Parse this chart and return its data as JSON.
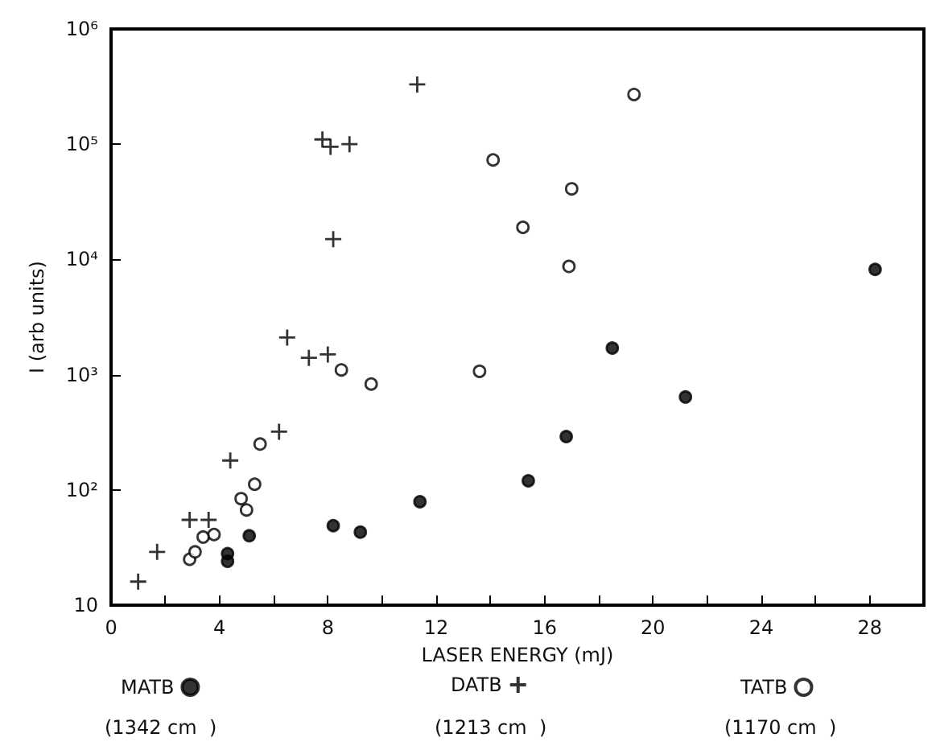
{
  "chart_data": {
    "type": "scatter",
    "xlabel": "LASER ENERGY (mJ)",
    "ylabel": "I (arb units)",
    "log": "y",
    "grid": false,
    "legend": "bottom",
    "xlim": [
      0,
      30
    ],
    "ylim": [
      10,
      1000000
    ],
    "xticks": [
      0,
      {
        "value": 2,
        "label": null
      },
      4,
      {
        "value": 6,
        "label": null
      },
      8,
      {
        "value": 10,
        "label": null
      },
      12,
      {
        "value": 14,
        "label": null
      },
      16,
      {
        "value": 18,
        "label": null
      },
      20,
      {
        "value": 22,
        "label": null
      },
      24,
      {
        "value": 26,
        "label": null
      },
      28
    ],
    "yticks": [
      {
        "value": 10,
        "label": "10"
      },
      {
        "value": 100,
        "label": "10²"
      },
      {
        "value": 1000,
        "label": "10³"
      },
      {
        "value": 10000,
        "label": "10⁴"
      },
      {
        "value": 100000,
        "label": "10⁵"
      },
      {
        "value": 1000000,
        "label": "10⁶"
      }
    ],
    "series": [
      {
        "name": "MATB",
        "color": "#000000",
        "marker": "circle",
        "x": [
          4.3,
          4.3,
          5.1,
          8.2,
          9.2,
          11.4,
          15.4,
          16.8,
          18.5,
          21.2,
          28.2
        ],
        "values": [
          28,
          24,
          40,
          49,
          43,
          79,
          120,
          290,
          1700,
          640,
          8200
        ]
      },
      {
        "name": "DATB",
        "color": "#000000",
        "marker": "cross",
        "x": [
          1.0,
          1.7,
          2.9,
          3.6,
          4.4,
          6.2,
          6.5,
          7.3,
          8.0,
          8.2,
          7.8,
          8.1,
          8.8,
          11.3
        ],
        "values": [
          16,
          29,
          55,
          55,
          180,
          320,
          2100,
          1400,
          1500,
          15000,
          110000,
          95000,
          100000,
          330000
        ]
      },
      {
        "name": "TATB",
        "color": "#ffffff",
        "marker": "circle",
        "x": [
          2.9,
          3.1,
          3.4,
          3.8,
          4.8,
          5.0,
          5.3,
          5.5,
          8.5,
          9.6,
          13.6,
          14.1,
          15.2,
          16.9,
          17.0,
          19.3
        ],
        "values": [
          25,
          29,
          39,
          41,
          84,
          67,
          112,
          250,
          1100,
          830,
          1070,
          73000,
          19000,
          8700,
          41000,
          270000
        ]
      }
    ],
    "annotations": [
      "(1342 cm  )",
      "(1213 cm  )",
      "(1170 cm  )"
    ]
  }
}
